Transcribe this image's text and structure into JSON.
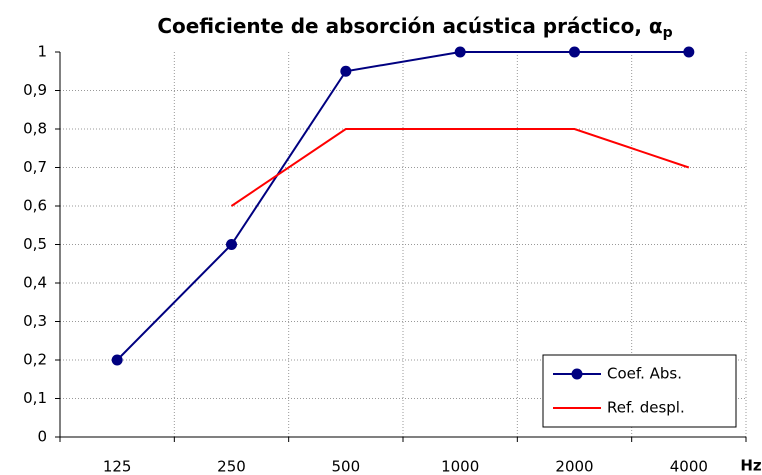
{
  "chart_data": {
    "type": "line",
    "title": "Coeficiente de absorción acústica práctico, α",
    "title_subscript": "p",
    "x_label": "Hz",
    "categories": [
      "125",
      "250",
      "500",
      "1000",
      "2000",
      "4000"
    ],
    "series": [
      {
        "name": "Coef. Abs.",
        "color": "#000080",
        "marker": "circle",
        "values": [
          0.2,
          0.5,
          0.95,
          1,
          1,
          1
        ]
      },
      {
        "name": "Ref. despl.",
        "color": "#ff0000",
        "values": [
          null,
          0.6,
          0.8,
          0.8,
          0.8,
          0.7
        ]
      }
    ],
    "ylim": [
      0,
      1
    ],
    "yticks": [
      0,
      {
        "value": 0.1,
        "label": "0,1"
      },
      {
        "value": 0.2,
        "label": "0,2"
      },
      {
        "value": 0.3,
        "label": "0,3"
      },
      {
        "value": 0.4,
        "label": "0,4"
      },
      {
        "value": 0.5,
        "label": "0,5"
      },
      {
        "value": 0.6,
        "label": "0,6"
      },
      {
        "value": 0.7,
        "label": "0,7"
      },
      {
        "value": 0.8,
        "label": "0,8"
      },
      {
        "value": 0.9,
        "label": "0,9"
      },
      1
    ],
    "grid": true,
    "legend": "lower right"
  }
}
